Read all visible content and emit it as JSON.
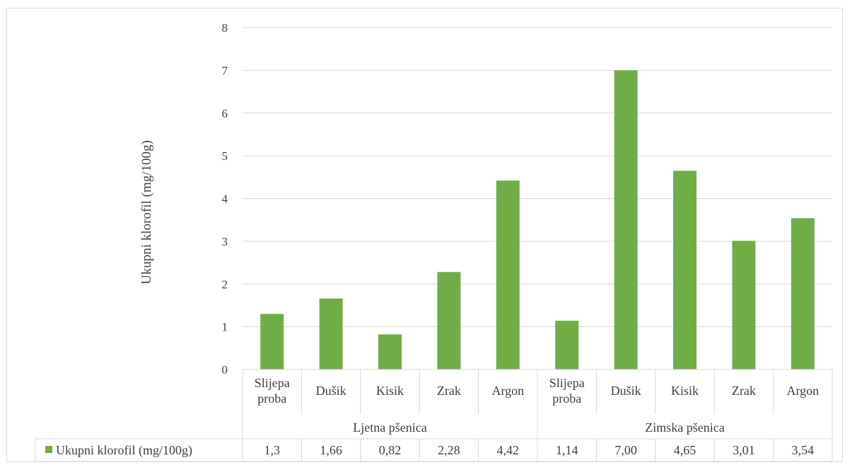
{
  "chart_data": {
    "type": "bar",
    "ylabel": "Ukupni klorofil  (mg/100g)",
    "ylim": [
      0,
      8
    ],
    "yticks": [
      "0",
      "1",
      "2",
      "3",
      "4",
      "5",
      "6",
      "7",
      "8"
    ],
    "grid": true,
    "groups": [
      {
        "name": "Ljetna pšenica",
        "categories": [
          "Slijepa proba",
          "Dušik",
          "Kisik",
          "Zrak",
          "Argon"
        ]
      },
      {
        "name": "Zimska pšenica",
        "categories": [
          "Slijepa proba",
          "Dušik",
          "Kisik",
          "Zrak",
          "Argon"
        ]
      }
    ],
    "series": [
      {
        "name": "Ukupni klorofil (mg/100g)",
        "values": [
          1.3,
          1.66,
          0.82,
          2.28,
          4.42,
          1.14,
          7.0,
          4.65,
          3.01,
          3.54
        ],
        "labels": [
          "1,3",
          "1,66",
          "0,82",
          "2,28",
          "4,42",
          "1,14",
          "7,00",
          "4,65",
          "3,01",
          "3,54"
        ]
      }
    ],
    "colors": {
      "bar": "#70ad47",
      "grid": "#d9d9d9",
      "text": "#404040"
    },
    "legend_placement": "data-table-left"
  }
}
